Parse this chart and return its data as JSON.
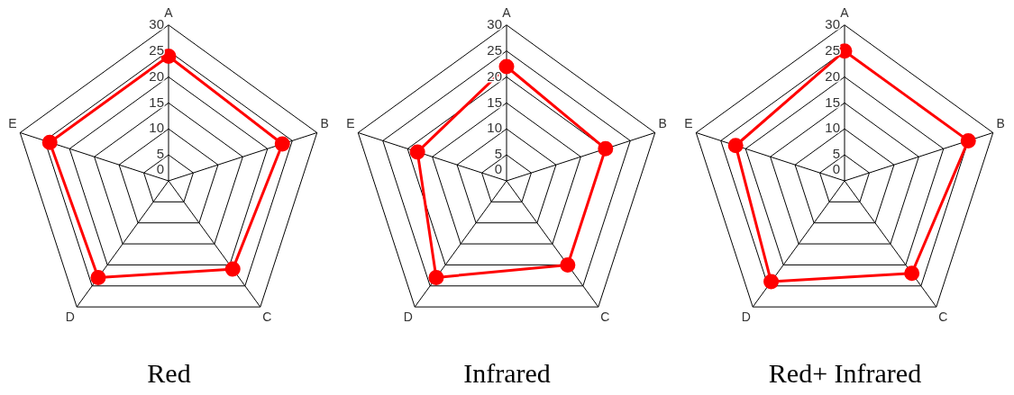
{
  "chart_data": [
    {
      "type": "radar",
      "title": "Red",
      "categories": [
        "A",
        "B",
        "C",
        "D",
        "E"
      ],
      "ylim": [
        0,
        30
      ],
      "yticks": [
        0,
        5,
        10,
        15,
        20,
        25,
        30
      ],
      "grid": true,
      "marker": "circle",
      "series": [
        {
          "color": "#ff0000",
          "values": [
            24,
            23,
            21,
            23,
            24
          ]
        }
      ]
    },
    {
      "type": "radar",
      "title": "Infrared",
      "categories": [
        "A",
        "B",
        "C",
        "D",
        "E"
      ],
      "ylim": [
        0,
        30
      ],
      "yticks": [
        0,
        5,
        10,
        15,
        20,
        25,
        30
      ],
      "grid": true,
      "marker": "circle",
      "series": [
        {
          "color": "#ff0000",
          "values": [
            22,
            20,
            20,
            23,
            18
          ]
        }
      ]
    },
    {
      "type": "radar",
      "title": "Red+ Infrared",
      "categories": [
        "A",
        "B",
        "C",
        "D",
        "E"
      ],
      "ylim": [
        0,
        30
      ],
      "yticks": [
        0,
        5,
        10,
        15,
        20,
        25,
        30
      ],
      "grid": true,
      "marker": "circle",
      "series": [
        {
          "color": "#ff0000",
          "values": [
            25,
            25,
            22,
            24,
            22
          ]
        }
      ]
    }
  ]
}
